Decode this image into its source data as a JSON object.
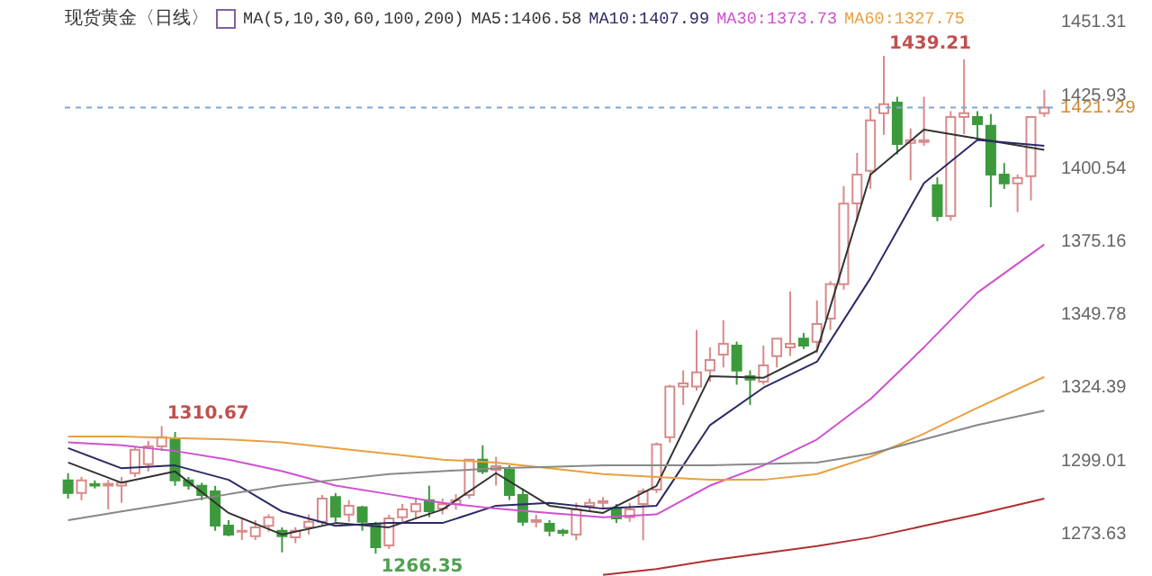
{
  "chart_data": {
    "type": "candlestick",
    "title": "现货黄金〈日线〉",
    "subtitle": "MA(5,10,30,60,100,200)",
    "categories": [
      null,
      null,
      null,
      null,
      null,
      null,
      null,
      null,
      null,
      null,
      null,
      null,
      null,
      null,
      null,
      null,
      null,
      null,
      null,
      null,
      null,
      null,
      null,
      null,
      null,
      null,
      null,
      null,
      null,
      null,
      null,
      null,
      null,
      null,
      null,
      null,
      null,
      null,
      null,
      null,
      null,
      null,
      null,
      null,
      null,
      null,
      null,
      null,
      null,
      null,
      null,
      null,
      null,
      null,
      null,
      null,
      null,
      null,
      null,
      null,
      null,
      null,
      null,
      null,
      null,
      null,
      null,
      null,
      null,
      null,
      null,
      null,
      null,
      null
    ],
    "ohlc": [
      [
        1291.8,
        1294.3,
        1285.5,
        1287.4
      ],
      [
        1287.4,
        1293,
        1284.9,
        1291.8
      ],
      [
        1290.5,
        1291.8,
        1289,
        1290
      ],
      [
        1290,
        1292,
        1281.7,
        1290.6
      ],
      [
        1290,
        1293,
        1284,
        1291
      ],
      [
        1294.3,
        1303.6,
        1293,
        1302.4
      ],
      [
        1297.4,
        1305.5,
        1294.9,
        1303.6
      ],
      [
        1303.6,
        1310.67,
        1302,
        1306.8
      ],
      [
        1306,
        1308.6,
        1289.9,
        1291.8
      ],
      [
        1291.8,
        1293,
        1288.6,
        1290
      ],
      [
        1289.9,
        1291,
        1284.9,
        1286.7
      ],
      [
        1288,
        1289.9,
        1274.3,
        1276.1
      ],
      [
        1276.1,
        1278,
        1272.4,
        1273
      ],
      [
        1274,
        1278.6,
        1271.1,
        1274.3
      ],
      [
        1272.4,
        1278,
        1271.1,
        1275.5
      ],
      [
        1276,
        1280,
        1274,
        1279
      ],
      [
        1274.3,
        1275.5,
        1266.8,
        1272.4
      ],
      [
        1272,
        1275.5,
        1270,
        1274.3
      ],
      [
        1275.5,
        1280,
        1273,
        1277.4
      ],
      [
        1277.4,
        1286.7,
        1276,
        1285.5
      ],
      [
        1286,
        1287.4,
        1277.4,
        1279.2
      ],
      [
        1279.9,
        1284.9,
        1277.4,
        1283
      ],
      [
        1282.4,
        1283,
        1274.3,
        1277.4
      ],
      [
        1276.7,
        1277.4,
        1266.35,
        1268.6
      ],
      [
        1269.2,
        1279.9,
        1268,
        1278.6
      ],
      [
        1279,
        1283.6,
        1277.4,
        1281.7
      ],
      [
        1281,
        1285.5,
        1278.6,
        1283.6
      ],
      [
        1284.9,
        1290,
        1279,
        1281.1
      ],
      [
        1282,
        1285.5,
        1280,
        1283.5
      ],
      [
        1283.6,
        1287,
        1281.7,
        1284.9
      ],
      [
        1286.7,
        1299,
        1285.5,
        1299
      ],
      [
        1299,
        1304,
        1294,
        1294.9
      ],
      [
        1295.5,
        1300,
        1290,
        1296.7
      ],
      [
        1295.5,
        1297,
        1285,
        1286.7
      ],
      [
        1286.7,
        1289,
        1276,
        1277.4
      ],
      [
        1277.4,
        1279.9,
        1275.5,
        1278
      ],
      [
        1276.7,
        1278,
        1272.4,
        1274.3
      ],
      [
        1274.3,
        1275,
        1272.4,
        1273.6
      ],
      [
        1273,
        1284,
        1271,
        1281.7
      ],
      [
        1283,
        1285.5,
        1281,
        1284
      ],
      [
        1284,
        1286,
        1282,
        1284.6
      ],
      [
        1281.7,
        1283.6,
        1277,
        1278.6
      ],
      [
        1279,
        1284,
        1277.4,
        1281.7
      ],
      [
        1283.6,
        1289,
        1271,
        1288
      ],
      [
        1288.6,
        1305,
        1287.4,
        1304.3
      ],
      [
        1306.8,
        1325,
        1304.9,
        1324.4
      ],
      [
        1324.4,
        1330,
        1318,
        1325.5
      ],
      [
        1324.4,
        1344,
        1323,
        1329.3
      ],
      [
        1330,
        1338,
        1326,
        1333.6
      ],
      [
        1335.5,
        1347.4,
        1331,
        1339.2
      ],
      [
        1338.6,
        1340,
        1325,
        1329.9
      ],
      [
        1328,
        1330,
        1318,
        1326.8
      ],
      [
        1326.1,
        1338.6,
        1325,
        1331.7
      ],
      [
        1334.9,
        1341,
        1331,
        1341
      ],
      [
        1338,
        1357.4,
        1335,
        1339.2
      ],
      [
        1341,
        1343,
        1337.4,
        1338.6
      ],
      [
        1339.9,
        1354.3,
        1336,
        1346.1
      ],
      [
        1348,
        1361,
        1344,
        1359.9
      ],
      [
        1359.9,
        1394,
        1358,
        1387.9
      ],
      [
        1388,
        1405.5,
        1381.8,
        1398
      ],
      [
        1399.3,
        1421,
        1393,
        1416.8
      ],
      [
        1419.3,
        1439.21,
        1411.8,
        1422.4
      ],
      [
        1423,
        1425,
        1405,
        1408.6
      ],
      [
        1409,
        1414,
        1396,
        1409.9
      ],
      [
        1409.3,
        1425,
        1408,
        1409.9
      ],
      [
        1394.3,
        1397,
        1381.8,
        1383.6
      ],
      [
        1383.6,
        1420,
        1382,
        1418
      ],
      [
        1418,
        1438,
        1412,
        1419.3
      ],
      [
        1418,
        1420,
        1410,
        1415.5
      ],
      [
        1414.9,
        1419,
        1386.7,
        1398
      ],
      [
        1398,
        1402,
        1393,
        1394.9
      ],
      [
        1394.9,
        1398,
        1385,
        1396.8
      ],
      [
        1397.4,
        1418,
        1389,
        1418
      ],
      [
        1419.3,
        1427.4,
        1418,
        1421.29
      ]
    ],
    "series": [
      {
        "type": "line",
        "name": "MA5:1406.58",
        "color": "#333333",
        "values": [
          1298,
          null,
          null,
          null,
          1291,
          null,
          null,
          null,
          1294.9,
          null,
          null,
          null,
          1280.5,
          null,
          null,
          null,
          1273,
          null,
          null,
          null,
          1277,
          null,
          null,
          null,
          1275.5,
          null,
          null,
          null,
          1281.7,
          null,
          null,
          null,
          1294.3,
          null,
          null,
          null,
          1283,
          null,
          null,
          null,
          1280.5,
          null,
          null,
          null,
          1289.9,
          null,
          null,
          null,
          1328,
          null,
          null,
          null,
          1327.4,
          null,
          null,
          null,
          1336.8,
          null,
          null,
          null,
          1398,
          null,
          null,
          null,
          1413.6,
          null,
          null,
          null,
          1410.5,
          null,
          null,
          null,
          null,
          1406.58
        ]
      },
      {
        "type": "line",
        "name": "MA10:1407.99",
        "color": "#2a2a66",
        "values": [
          1303,
          null,
          null,
          null,
          1296,
          null,
          null,
          null,
          1297,
          null,
          null,
          null,
          1292,
          null,
          null,
          null,
          1281,
          null,
          null,
          null,
          1276,
          null,
          null,
          null,
          1277,
          null,
          null,
          null,
          1277,
          null,
          null,
          null,
          1283,
          null,
          null,
          null,
          1284,
          null,
          null,
          null,
          1282,
          null,
          null,
          null,
          1283,
          null,
          null,
          null,
          1311,
          null,
          null,
          null,
          1324,
          null,
          null,
          null,
          1333,
          null,
          null,
          null,
          1362,
          null,
          null,
          null,
          1395,
          null,
          null,
          null,
          1410,
          null,
          null,
          null,
          null,
          1407.99
        ]
      },
      {
        "type": "line",
        "name": "MA30:1373.73",
        "color": "#d050d0",
        "values": [
          1305,
          null,
          null,
          null,
          1304,
          null,
          null,
          null,
          1302,
          null,
          null,
          null,
          1299,
          null,
          null,
          null,
          1295,
          null,
          null,
          null,
          1290,
          null,
          null,
          null,
          1287,
          null,
          null,
          null,
          1284,
          null,
          null,
          null,
          1282,
          null,
          null,
          null,
          1280.5,
          null,
          null,
          null,
          1279,
          null,
          null,
          null,
          1280,
          null,
          null,
          null,
          1290,
          null,
          null,
          null,
          1297,
          null,
          null,
          null,
          1306,
          null,
          null,
          null,
          1320,
          null,
          null,
          null,
          1338,
          null,
          null,
          null,
          1357,
          null,
          null,
          null,
          null,
          1373.73
        ]
      },
      {
        "type": "line",
        "name": "MA60:1327.75",
        "color": "#e8a040",
        "values": [
          1307,
          null,
          null,
          null,
          1307,
          null,
          null,
          null,
          1306.5,
          null,
          null,
          null,
          1306,
          null,
          null,
          null,
          1305,
          null,
          null,
          null,
          1303,
          null,
          null,
          null,
          1301,
          null,
          null,
          null,
          1299,
          null,
          null,
          null,
          1298,
          null,
          null,
          null,
          1296,
          null,
          null,
          null,
          1294,
          null,
          null,
          null,
          1293,
          null,
          null,
          null,
          1292,
          null,
          null,
          null,
          1292,
          null,
          null,
          null,
          1294,
          null,
          null,
          null,
          1300,
          null,
          null,
          null,
          1308,
          null,
          null,
          null,
          1317,
          null,
          null,
          null,
          null,
          1327.75
        ]
      },
      {
        "type": "line",
        "color": "#888888",
        "values": [
          1278,
          null,
          null,
          null,
          1281,
          null,
          null,
          null,
          1284,
          null,
          null,
          null,
          1287,
          null,
          null,
          null,
          1290,
          null,
          null,
          null,
          1292,
          null,
          null,
          null,
          1294,
          null,
          null,
          null,
          1295,
          null,
          null,
          null,
          1296,
          null,
          null,
          null,
          1296.5,
          null,
          null,
          null,
          1297,
          null,
          null,
          null,
          1297,
          null,
          null,
          null,
          1297,
          null,
          null,
          null,
          1297.5,
          null,
          null,
          null,
          1298,
          null,
          null,
          null,
          1301,
          null,
          null,
          null,
          1306,
          null,
          null,
          null,
          1311,
          null,
          null,
          null,
          null,
          1316
        ]
      },
      {
        "type": "line",
        "color": "#b03030",
        "values": [
          null,
          null,
          null,
          null,
          null,
          null,
          null,
          null,
          null,
          null,
          null,
          null,
          null,
          null,
          null,
          null,
          null,
          null,
          null,
          null,
          null,
          null,
          null,
          null,
          null,
          null,
          null,
          null,
          null,
          null,
          null,
          null,
          null,
          null,
          null,
          null,
          null,
          null,
          null,
          null,
          1259,
          null,
          null,
          null,
          1261,
          null,
          null,
          null,
          1264,
          null,
          null,
          null,
          1266.5,
          null,
          null,
          null,
          1269,
          null,
          null,
          null,
          1272,
          null,
          null,
          null,
          1276,
          null,
          null,
          null,
          1280,
          null,
          null,
          null,
          null,
          1285.5
        ]
      }
    ],
    "ylim": [
      1258.6,
      1458.6
    ],
    "yticks": [
      1273.63,
      1299.01,
      1324.39,
      1349.78,
      1375.16,
      1400.54,
      1425.93,
      1451.31
    ],
    "ref_lines": [
      {
        "axis": "y",
        "value": 1421.29,
        "label": "1421.29",
        "color": "#7fa7d0",
        "line_style": "dashed"
      }
    ],
    "annotations": [
      "1310.67",
      "1439.21",
      "1266.35"
    ],
    "legend": "top",
    "tick_labels": "y"
  }
}
